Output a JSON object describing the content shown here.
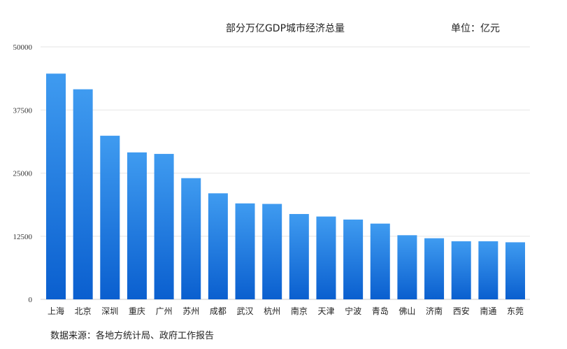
{
  "chart_data": {
    "type": "bar",
    "title": "部分万亿GDP城市经济总量",
    "unit": "单位：亿元",
    "source": "数据来源：各地方统计局、政府工作报告",
    "categories": [
      "上海",
      "北京",
      "深圳",
      "重庆",
      "广州",
      "苏州",
      "成都",
      "武汉",
      "杭州",
      "南京",
      "天津",
      "宁波",
      "青岛",
      "佛山",
      "济南",
      "西安",
      "南通",
      "东莞"
    ],
    "values": [
      44700,
      41600,
      32400,
      29100,
      28800,
      24000,
      21000,
      19000,
      18900,
      16900,
      16400,
      15800,
      15000,
      12700,
      12100,
      11500,
      11500,
      11300
    ],
    "yticks": [
      "0",
      "12500",
      "25000",
      "37500",
      "50000"
    ],
    "ylim": [
      0,
      50000
    ],
    "grid": true,
    "legend": "none",
    "bar_color_top": "#3f9bf0",
    "bar_color_bottom": "#0a5fcf"
  }
}
